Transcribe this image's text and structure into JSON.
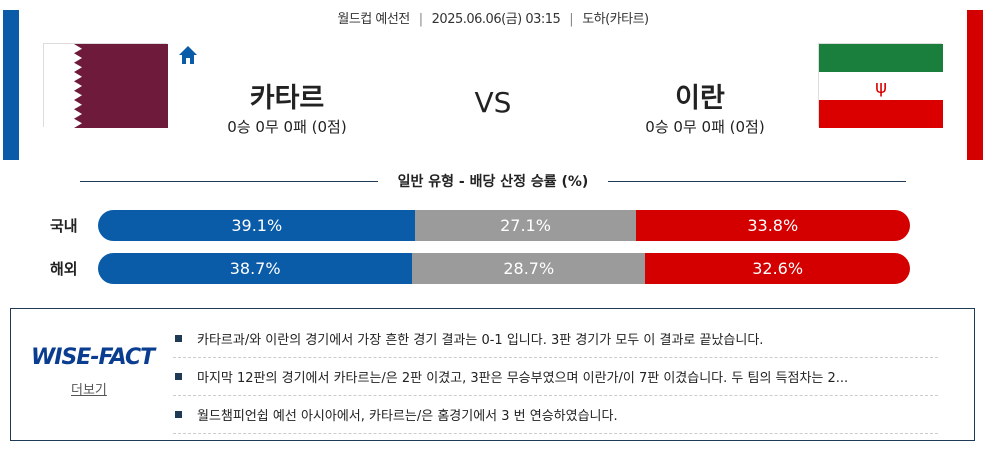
{
  "match": {
    "competition": "월드컵 예선전",
    "datetime": "2025.06.06(금) 03:15",
    "venue": "도하(카타르)"
  },
  "home": {
    "name": "카타르",
    "record": "0승 0무 0패 (0점)",
    "flag": "qatar-flag",
    "color": "#0a5ca8"
  },
  "away": {
    "name": "이란",
    "record": "0승 0무 0패 (0점)",
    "flag": "iran-flag",
    "color": "#d40000"
  },
  "vs": "VS",
  "odds": {
    "title": "일반 유형 - 배당 산정 승률 (%)",
    "rows": [
      {
        "label": "국내",
        "home": "39.1%",
        "draw": "27.1%",
        "away": "33.8%",
        "values": [
          39.1,
          27.1,
          33.8
        ]
      },
      {
        "label": "해외",
        "home": "38.7%",
        "draw": "28.7%",
        "away": "32.6%",
        "values": [
          38.7,
          28.7,
          32.6
        ]
      }
    ],
    "colors": {
      "home": "#0a5ca8",
      "draw": "#9b9b9b",
      "away": "#d40000"
    }
  },
  "wisefact": {
    "logo": "WISE-FACT",
    "more": "더보기",
    "items": [
      "카타르과/와 이란의 경기에서 가장 흔한 경기 결과는 0-1 입니다. 3판 경기가 모두 이 결과로 끝났습니다.",
      "마지막 12판의 경기에서 카타르는/은 2판 이겼고, 3판은 무승부였으며 이란가/이 7판 이겼습니다. 두 팀의 득점차는 2...",
      "월드챔피언쉽 예선 아시아에서, 카타르는/은 홈경기에서 3 번 연승하였습니다."
    ]
  }
}
